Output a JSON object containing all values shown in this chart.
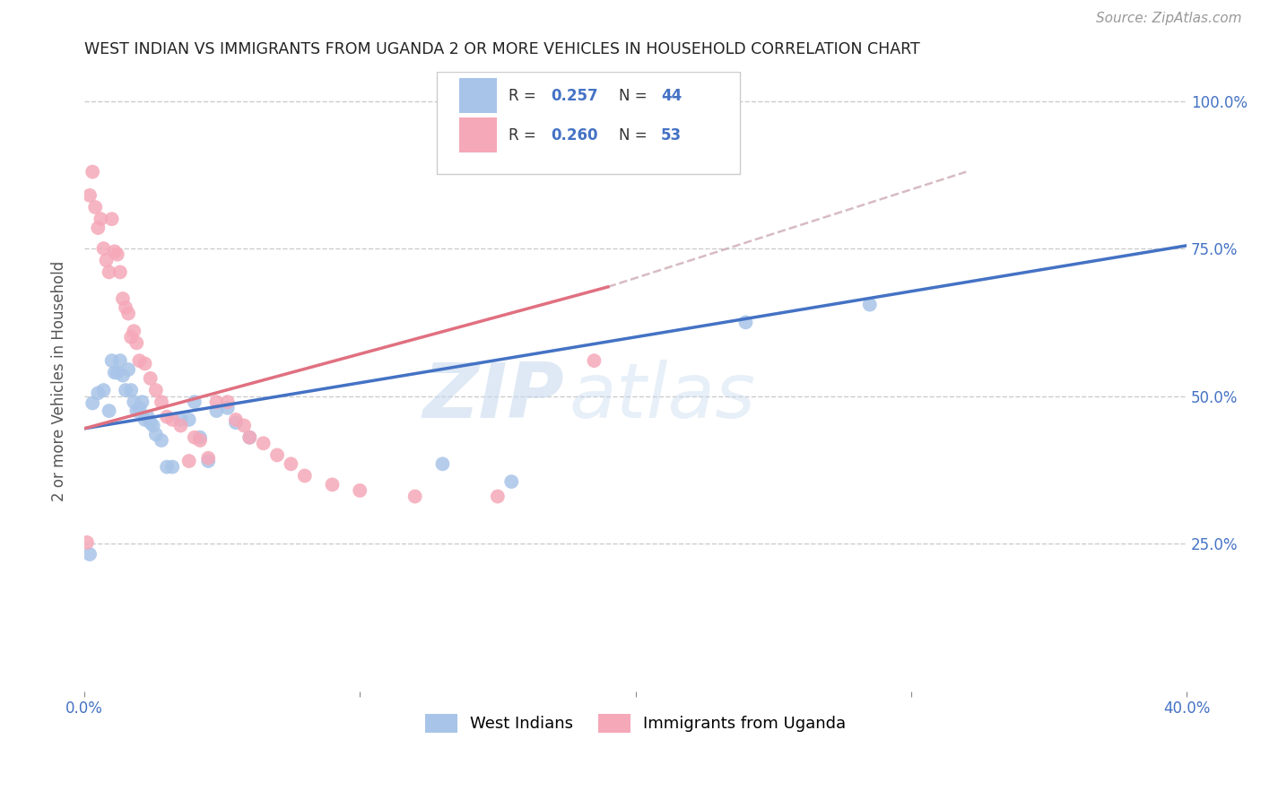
{
  "title": "WEST INDIAN VS IMMIGRANTS FROM UGANDA 2 OR MORE VEHICLES IN HOUSEHOLD CORRELATION CHART",
  "source": "Source: ZipAtlas.com",
  "ylabel": "2 or more Vehicles in Household",
  "watermark_zip": "ZIP",
  "watermark_atlas": "atlas",
  "series1_label": "West Indians",
  "series2_label": "Immigrants from Uganda",
  "color1": "#a8c4e8",
  "color2": "#f5a8b8",
  "line_color1": "#4472c4",
  "line_color2": "#e07080",
  "dash_color": "#d0b0b8",
  "xlim": [
    0,
    0.4
  ],
  "ylim": [
    0,
    1.05
  ],
  "blue_line_x0": 0.0,
  "blue_line_y0": 0.445,
  "blue_line_x1": 0.4,
  "blue_line_y1": 0.755,
  "pink_line_x0": 0.0,
  "pink_line_y0": 0.445,
  "pink_line_x1": 0.19,
  "pink_line_y1": 0.685,
  "dash_line_x0": 0.19,
  "dash_line_y0": 0.685,
  "dash_line_x1": 0.32,
  "dash_line_y1": 0.88,
  "wi_x": [
    0.002,
    0.003,
    0.005,
    0.007,
    0.009,
    0.01,
    0.011,
    0.012,
    0.013,
    0.014,
    0.015,
    0.016,
    0.017,
    0.018,
    0.019,
    0.02,
    0.021,
    0.022,
    0.023,
    0.024,
    0.025,
    0.026,
    0.028,
    0.03,
    0.032,
    0.035,
    0.038,
    0.04,
    0.042,
    0.045,
    0.048,
    0.052,
    0.055,
    0.06,
    0.13,
    0.155,
    0.24,
    0.285
  ],
  "wi_y": [
    0.232,
    0.488,
    0.505,
    0.51,
    0.475,
    0.56,
    0.54,
    0.54,
    0.56,
    0.535,
    0.51,
    0.545,
    0.51,
    0.49,
    0.475,
    0.48,
    0.49,
    0.46,
    0.465,
    0.455,
    0.45,
    0.435,
    0.425,
    0.38,
    0.38,
    0.46,
    0.46,
    0.49,
    0.43,
    0.39,
    0.475,
    0.48,
    0.455,
    0.43,
    0.385,
    0.355,
    0.625,
    0.655
  ],
  "ug_x": [
    0.001,
    0.002,
    0.003,
    0.004,
    0.005,
    0.006,
    0.007,
    0.008,
    0.009,
    0.01,
    0.011,
    0.012,
    0.013,
    0.014,
    0.015,
    0.016,
    0.017,
    0.018,
    0.019,
    0.02,
    0.022,
    0.024,
    0.026,
    0.028,
    0.03,
    0.032,
    0.035,
    0.038,
    0.04,
    0.042,
    0.045,
    0.048,
    0.052,
    0.055,
    0.058,
    0.06,
    0.065,
    0.07,
    0.075,
    0.08,
    0.09,
    0.1,
    0.12,
    0.15,
    0.185
  ],
  "ug_y": [
    0.252,
    0.84,
    0.88,
    0.82,
    0.785,
    0.8,
    0.75,
    0.73,
    0.71,
    0.8,
    0.745,
    0.74,
    0.71,
    0.665,
    0.65,
    0.64,
    0.6,
    0.61,
    0.59,
    0.56,
    0.555,
    0.53,
    0.51,
    0.49,
    0.465,
    0.46,
    0.45,
    0.39,
    0.43,
    0.425,
    0.395,
    0.49,
    0.49,
    0.46,
    0.45,
    0.43,
    0.42,
    0.4,
    0.385,
    0.365,
    0.35,
    0.34,
    0.33,
    0.33,
    0.56
  ]
}
